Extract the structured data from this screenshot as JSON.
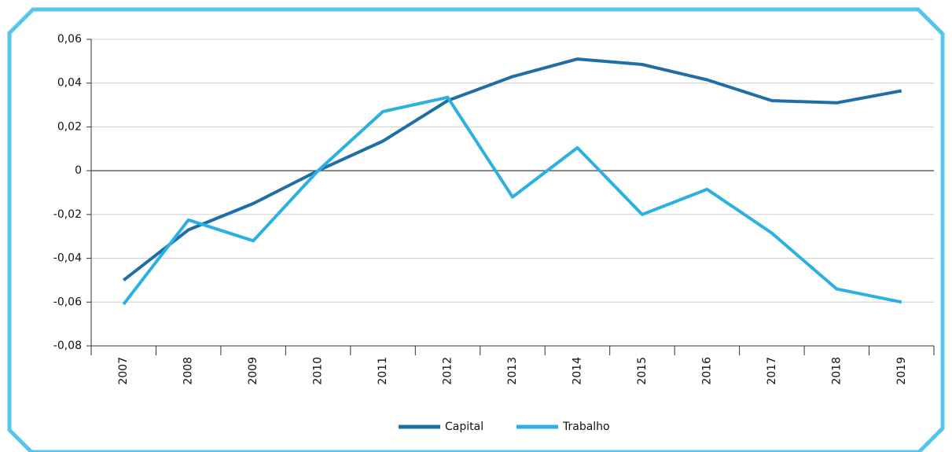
{
  "chart_data": {
    "type": "line",
    "categories": [
      "2007",
      "2008",
      "2009",
      "2010",
      "2011",
      "2012",
      "2013",
      "2014",
      "2015",
      "2016",
      "2017",
      "2018",
      "2019"
    ],
    "series": [
      {
        "name": "Capital",
        "color": "#1f6fa5",
        "values": [
          -0.05,
          -0.027,
          -0.015,
          0.0,
          0.0135,
          0.032,
          0.043,
          0.051,
          0.0485,
          0.0415,
          0.032,
          0.031,
          0.0365
        ]
      },
      {
        "name": "Trabalho",
        "color": "#2bb1e1",
        "values": [
          -0.061,
          -0.0225,
          -0.032,
          0.0,
          0.027,
          0.0335,
          -0.012,
          0.0105,
          -0.02,
          -0.0085,
          -0.0285,
          -0.054,
          -0.06
        ]
      }
    ],
    "ylim": [
      -0.08,
      0.06
    ],
    "yticks": [
      {
        "value": -0.08,
        "label": "-0,08"
      },
      {
        "value": -0.06,
        "label": "-0,06"
      },
      {
        "value": -0.04,
        "label": "-0,04"
      },
      {
        "value": -0.02,
        "label": "-0,02"
      },
      0,
      {
        "value": 0.02,
        "label": "0,02"
      },
      {
        "value": 0.04,
        "label": "0,04"
      },
      {
        "value": 0.06,
        "label": "0,06"
      }
    ],
    "grid": true,
    "legend": "bottom"
  }
}
